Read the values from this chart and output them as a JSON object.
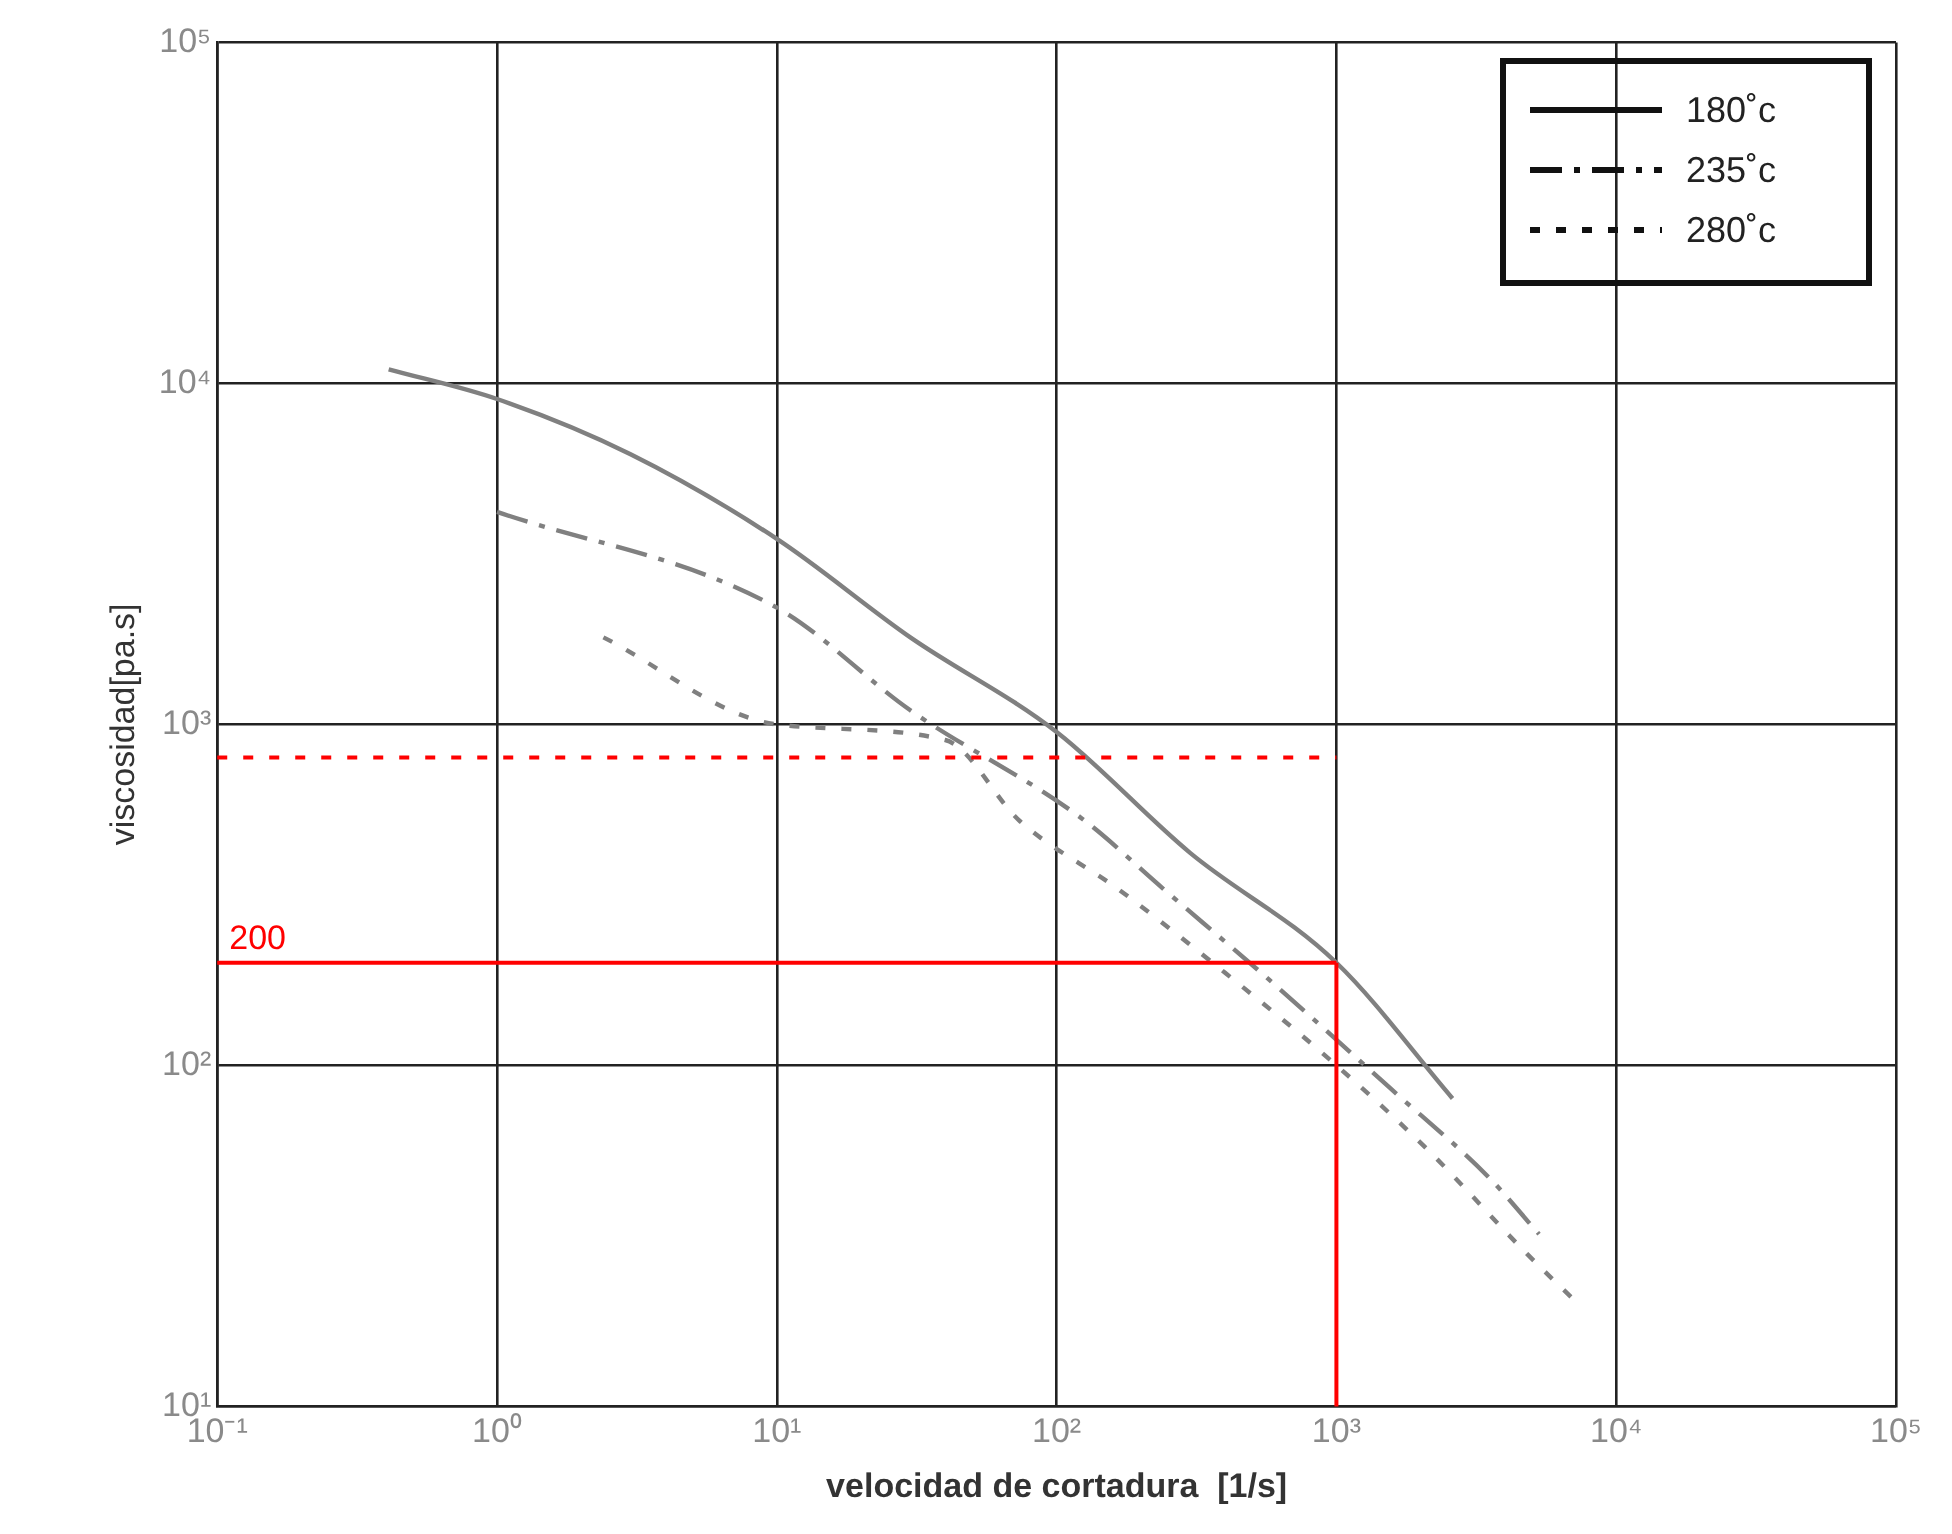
{
  "chart_data": {
    "type": "line",
    "xlabel": "velocidad de cortadura  [1/s]",
    "ylabel": "viscosidad[pa.s]",
    "log": "xy",
    "grid": true,
    "legend": "top right",
    "marker": "none",
    "xlim": [
      0.1,
      100000
    ],
    "xticks": [
      {
        "value": 0.1,
        "label": "10⁻¹"
      },
      {
        "value": 1,
        "label": "10⁰"
      },
      {
        "value": 10,
        "label": "10¹"
      },
      {
        "value": 100,
        "label": "10²"
      },
      {
        "value": 1000,
        "label": "10³"
      },
      {
        "value": 10000,
        "label": "10⁴"
      },
      {
        "value": 100000,
        "label": "10⁵"
      }
    ],
    "ylim": [
      10,
      100000
    ],
    "yticks": [
      {
        "value": 10,
        "label": "10¹"
      },
      {
        "value": 100,
        "label": "10²"
      },
      {
        "value": 1000,
        "label": "10³"
      },
      {
        "value": 10000,
        "label": "10⁴"
      },
      {
        "value": 100000,
        "label": "10⁵"
      }
    ],
    "series": [
      {
        "name": "180˚c",
        "color": "#808080",
        "line_style": "solid",
        "x": [
          0.41,
          1,
          3,
          10,
          30,
          100,
          300,
          1000,
          2600
        ],
        "values": [
          11000,
          9000,
          6200,
          3500,
          1800,
          950,
          420,
          200,
          80
        ]
      },
      {
        "name": "235˚c",
        "color": "#808080",
        "line_style": "dashdot",
        "x": [
          1,
          10,
          30,
          123,
          240,
          590,
          1550,
          3500,
          5300
        ],
        "values": [
          4200,
          2200,
          1100,
          530,
          330,
          175,
          86,
          47,
          32
        ]
      },
      {
        "name": "280˚c",
        "color": "#808080",
        "line_style": "dashed",
        "x": [
          2.4,
          10,
          40,
          74,
          165,
          390,
          910,
          2100,
          4800,
          7300
        ],
        "values": [
          1800,
          1000,
          900,
          520,
          330,
          190,
          107,
          57,
          28,
          20
        ]
      }
    ],
    "ref_lines": [
      {
        "axis": "y",
        "value": 200,
        "label": "200",
        "color": "#ff0000",
        "line_style": "solid"
      },
      {
        "axis": "x",
        "value": 1000,
        "color": "#ff0000",
        "line_style": "solid"
      },
      {
        "axis": "y",
        "value": 800,
        "color": "#ff0000",
        "line_style": "dashed"
      }
    ]
  }
}
